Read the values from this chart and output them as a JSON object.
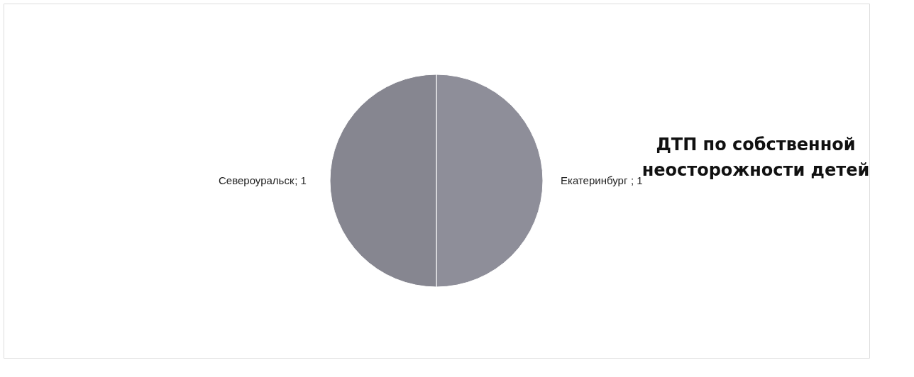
{
  "chart_data": {
    "type": "pie",
    "title": "ДТП по собственной\nнеосторожности детей",
    "categories": [
      "Екатеринбург",
      "Североуральск"
    ],
    "values": [
      1,
      1
    ],
    "colors": [
      "#8e8e99",
      "#868690"
    ],
    "value_labels": [
      "; 1",
      "; 1"
    ],
    "legend": false
  }
}
